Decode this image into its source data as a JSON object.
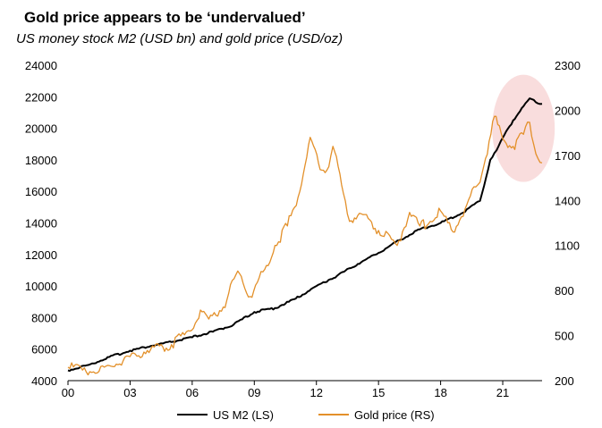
{
  "chart_data": {
    "type": "line",
    "title": "Gold price appears to be ‘undervalued’",
    "subtitle": "US money stock M2 (USD bn) and gold price (USD/oz)",
    "x_ticks": [
      "00",
      "03",
      "06",
      "09",
      "12",
      "15",
      "18",
      "21"
    ],
    "x_range": [
      2000.0,
      2022.9
    ],
    "y_left": {
      "ylim": [
        4000,
        24000
      ],
      "ticks": [
        4000,
        6000,
        8000,
        10000,
        12000,
        14000,
        16000,
        18000,
        20000,
        22000,
        24000
      ]
    },
    "y_right": {
      "ylim": [
        200,
        2300
      ],
      "ticks": [
        200,
        500,
        800,
        1100,
        1400,
        1700,
        2000,
        2300
      ]
    },
    "grid": false,
    "legend_position": "bottom",
    "highlight": {
      "type": "ellipse",
      "color": "#f9dddd",
      "center": [
        2022.0,
        1880
      ]
    },
    "series": [
      {
        "name": "US M2 (LS)",
        "axis": "left",
        "color": "#000000",
        "x": [
          2000.0,
          2001.0,
          2002.0,
          2003.0,
          2004.0,
          2005.0,
          2006.0,
          2007.0,
          2008.0,
          2009.0,
          2010.0,
          2011.0,
          2012.0,
          2013.0,
          2014.0,
          2015.0,
          2016.0,
          2017.0,
          2018.0,
          2019.0,
          2019.9,
          2020.2,
          2020.4,
          2020.7,
          2021.0,
          2021.5,
          2022.0,
          2022.3,
          2022.6,
          2022.9
        ],
        "values": [
          4650,
          5000,
          5500,
          5900,
          6200,
          6450,
          6750,
          7100,
          7550,
          8350,
          8600,
          9200,
          10000,
          10650,
          11400,
          12100,
          12900,
          13600,
          14000,
          14600,
          15400,
          16900,
          18000,
          18600,
          19400,
          20500,
          21400,
          21900,
          21650,
          21550
        ]
      },
      {
        "name": "Gold price (RS)",
        "axis": "right",
        "color": "#e3902a",
        "x": [
          2000.0,
          2000.7,
          2001.5,
          2002.0,
          2003.0,
          2004.0,
          2005.0,
          2005.9,
          2006.4,
          2006.8,
          2007.5,
          2008.2,
          2008.8,
          2009.5,
          2010.0,
          2010.6,
          2011.2,
          2011.7,
          2012.1,
          2012.5,
          2012.8,
          2013.3,
          2013.6,
          2014.0,
          2014.5,
          2015.0,
          2015.9,
          2016.5,
          2017.0,
          2017.5,
          2018.0,
          2018.6,
          2019.0,
          2019.7,
          2020.0,
          2020.6,
          2021.0,
          2021.5,
          2022.0,
          2022.3,
          2022.6,
          2022.9
        ],
        "values": [
          290,
          270,
          262,
          300,
          360,
          410,
          440,
          530,
          670,
          610,
          690,
          930,
          760,
          940,
          1100,
          1230,
          1460,
          1820,
          1650,
          1600,
          1760,
          1450,
          1260,
          1300,
          1280,
          1200,
          1100,
          1320,
          1230,
          1260,
          1330,
          1190,
          1290,
          1490,
          1580,
          1960,
          1810,
          1760,
          1840,
          1920,
          1710,
          1650
        ]
      }
    ]
  },
  "legend": [
    {
      "label": "US M2 (LS)",
      "color": "#000000"
    },
    {
      "label": "Gold price (RS)",
      "color": "#e3902a"
    }
  ]
}
